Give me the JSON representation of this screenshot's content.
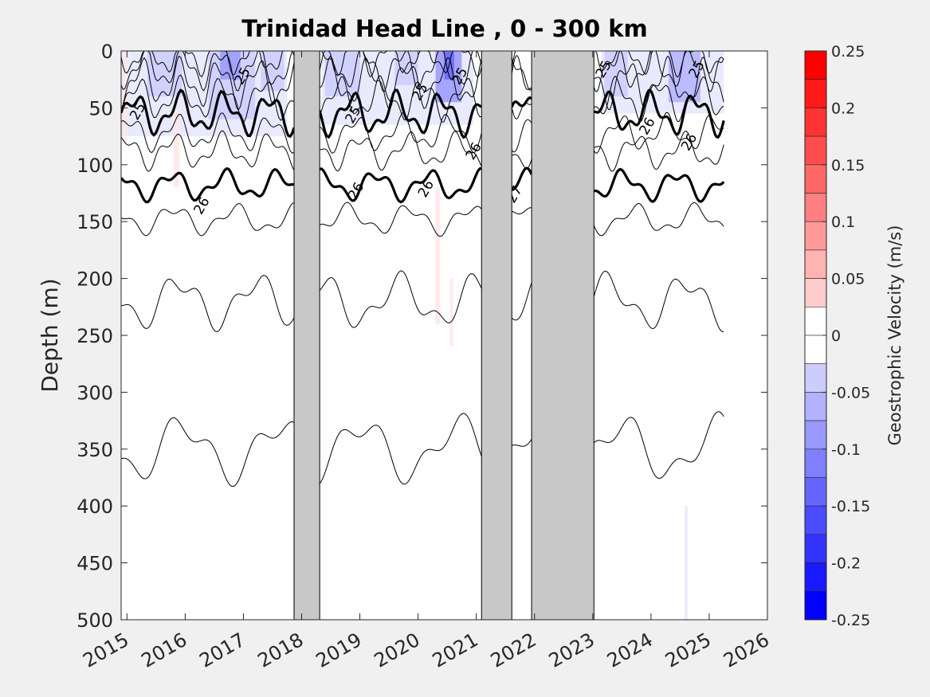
{
  "chart_data": {
    "type": "heatmap",
    "title": "Trinidad Head Line , 0 - 300 km",
    "ylabel": "Depth (m)",
    "colorbar_label": "Geostrophic Velocity (m/s)",
    "x_axis": {
      "range": [
        2014.9,
        2026.0
      ],
      "tick_labels": [
        "2015",
        "2016",
        "2017",
        "2018",
        "2019",
        "2020",
        "2021",
        "2022",
        "2023",
        "2024",
        "2025",
        "2026"
      ],
      "tick_values": [
        2015,
        2016,
        2017,
        2018,
        2019,
        2020,
        2021,
        2022,
        2023,
        2024,
        2025,
        2026
      ]
    },
    "y_axis": {
      "range": [
        0,
        500
      ],
      "reversed": true,
      "tick_labels": [
        "0",
        "50",
        "100",
        "150",
        "200",
        "250",
        "300",
        "350",
        "400",
        "450",
        "500"
      ],
      "tick_values": [
        0,
        50,
        100,
        150,
        200,
        250,
        300,
        350,
        400,
        450,
        500
      ]
    },
    "colorbar": {
      "range": [
        -0.25,
        0.25
      ],
      "step": 0.025,
      "tick_labels": [
        "0.25",
        "0.2",
        "0.15",
        "0.1",
        "0.05",
        "0",
        "-0.05",
        "-0.1",
        "-0.15",
        "-0.2",
        "-0.25"
      ],
      "tick_values": [
        0.25,
        0.2,
        0.15,
        0.1,
        0.05,
        0,
        -0.05,
        -0.1,
        -0.15,
        -0.2,
        -0.25
      ],
      "negative_color": "#0000ff",
      "positive_color": "#ff0000",
      "neutral_color": "#ffffff"
    },
    "data_gaps": [
      {
        "start": 2017.87,
        "end": 2018.31
      },
      {
        "start": 2021.09,
        "end": 2021.61
      },
      {
        "start": 2021.95,
        "end": 2023.02
      }
    ],
    "gap_color": "#c8c8c8",
    "contour_labels": [
      {
        "text": "25",
        "x": 2015.25,
        "depth": 55
      },
      {
        "text": "25",
        "x": 2017.05,
        "depth": 24
      },
      {
        "text": "26",
        "x": 2016.35,
        "depth": 138
      },
      {
        "text": "25",
        "x": 2018.95,
        "depth": 58
      },
      {
        "text": "26",
        "x": 2019.0,
        "depth": 125
      },
      {
        "text": "25",
        "x": 2020.1,
        "depth": 38
      },
      {
        "text": "25",
        "x": 2020.78,
        "depth": 24
      },
      {
        "text": "26",
        "x": 2020.2,
        "depth": 123
      },
      {
        "text": "26",
        "x": 2021.02,
        "depth": 90
      },
      {
        "text": "27",
        "x": 2021.72,
        "depth": 128
      },
      {
        "text": "25",
        "x": 2023.25,
        "depth": 18
      },
      {
        "text": "26",
        "x": 2024.0,
        "depth": 68
      },
      {
        "text": "26",
        "x": 2024.72,
        "depth": 82
      },
      {
        "text": "25",
        "x": 2024.85,
        "depth": 18
      }
    ],
    "velocity_patches": [
      {
        "x0": 2014.9,
        "x1": 2017.75,
        "d0": 0,
        "d1": 75,
        "v": -0.04
      },
      {
        "x0": 2015.35,
        "x1": 2015.95,
        "d0": 0,
        "d1": 40,
        "v": -0.07
      },
      {
        "x0": 2016.4,
        "x1": 2017.2,
        "d0": 0,
        "d1": 60,
        "v": -0.07
      },
      {
        "x0": 2016.6,
        "x1": 2016.95,
        "d0": 0,
        "d1": 25,
        "v": -0.1
      },
      {
        "x0": 2017.3,
        "x1": 2017.7,
        "d0": 0,
        "d1": 35,
        "v": -0.06
      },
      {
        "x0": 2018.35,
        "x1": 2020.95,
        "d0": 0,
        "d1": 65,
        "v": -0.04
      },
      {
        "x0": 2018.4,
        "x1": 2019.0,
        "d0": 0,
        "d1": 40,
        "v": -0.06
      },
      {
        "x0": 2019.6,
        "x1": 2020.0,
        "d0": 0,
        "d1": 30,
        "v": -0.06
      },
      {
        "x0": 2020.3,
        "x1": 2020.75,
        "d0": 0,
        "d1": 45,
        "v": -0.1
      },
      {
        "x0": 2020.45,
        "x1": 2020.62,
        "d0": 0,
        "d1": 25,
        "v": -0.16
      },
      {
        "x0": 2023.15,
        "x1": 2025.25,
        "d0": 0,
        "d1": 55,
        "v": -0.04
      },
      {
        "x0": 2023.2,
        "x1": 2023.6,
        "d0": 0,
        "d1": 40,
        "v": -0.07
      },
      {
        "x0": 2024.3,
        "x1": 2024.85,
        "d0": 0,
        "d1": 45,
        "v": -0.09
      },
      {
        "x0": 2014.92,
        "x1": 2015.0,
        "d0": 0,
        "d1": 80,
        "v": 0.03
      },
      {
        "x0": 2015.8,
        "x1": 2015.9,
        "d0": 50,
        "d1": 120,
        "v": 0.03
      },
      {
        "x0": 2020.3,
        "x1": 2020.38,
        "d0": 120,
        "d1": 240,
        "v": 0.04
      },
      {
        "x0": 2020.55,
        "x1": 2020.6,
        "d0": 200,
        "d1": 260,
        "v": 0.03
      },
      {
        "x0": 2024.58,
        "x1": 2024.63,
        "d0": 400,
        "d1": 500,
        "v": -0.04
      }
    ]
  }
}
